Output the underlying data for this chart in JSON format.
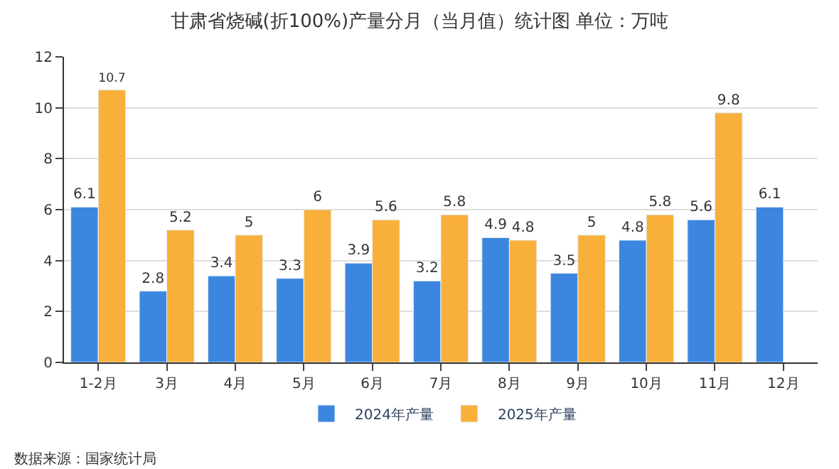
{
  "chart_data": {
    "type": "bar",
    "title": "甘肃省烧碱(折100%)产量分月（当月值）统计图 单位：万吨",
    "categories": [
      "1-2月",
      "3月",
      "4月",
      "5月",
      "6月",
      "7月",
      "8月",
      "9月",
      "10月",
      "11月",
      "12月"
    ],
    "series": [
      {
        "name": "2024年产量",
        "color": "#3c86e0",
        "values": [
          6.1,
          2.8,
          3.4,
          3.3,
          3.9,
          3.2,
          4.9,
          3.5,
          4.8,
          5.6,
          6.1
        ]
      },
      {
        "name": "2025年产量",
        "color": "#f9b03b",
        "values": [
          10.7,
          5.2,
          5,
          6,
          5.6,
          5.8,
          4.8,
          5,
          5.8,
          9.8,
          null
        ]
      }
    ],
    "ylim": [
      0,
      12
    ],
    "yticks": [
      0,
      2,
      4,
      6,
      8,
      10,
      12
    ],
    "grid": "y",
    "legend": "bottom",
    "data_labels": true,
    "annotations": [
      "数据来源：国家统计局"
    ]
  }
}
